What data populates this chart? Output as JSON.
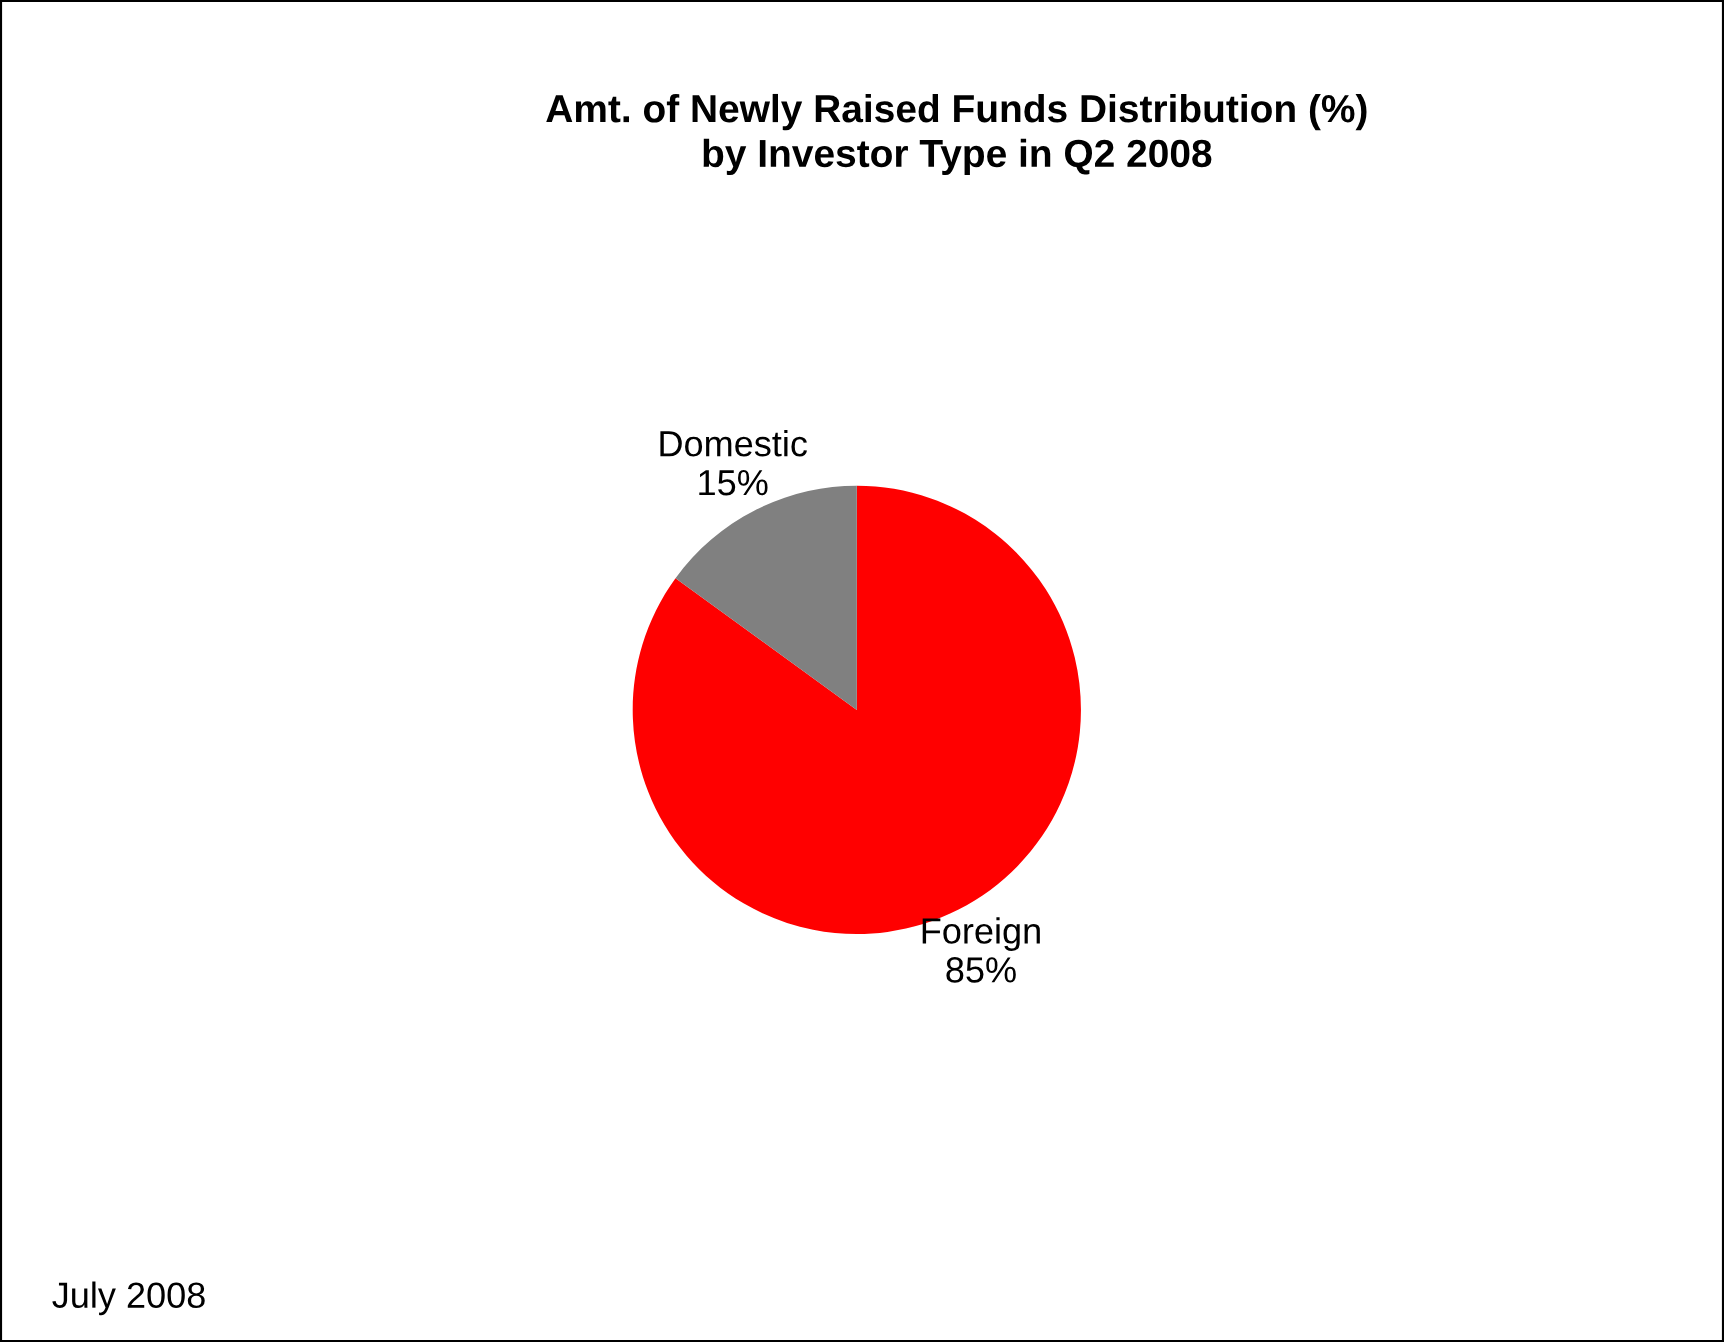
{
  "chart_data": {
    "type": "pie",
    "title": "Amt. of Newly Raised Funds Distribution (%)\nby Investor Type in Q2 2008",
    "categories": [
      "Foreign",
      "Domestic"
    ],
    "values": [
      85,
      15
    ],
    "value_labels": [
      "85%",
      "15%"
    ],
    "colors": [
      "#ff0000",
      "#808080"
    ],
    "annotations": [
      "July 2008"
    ],
    "legend": false
  }
}
